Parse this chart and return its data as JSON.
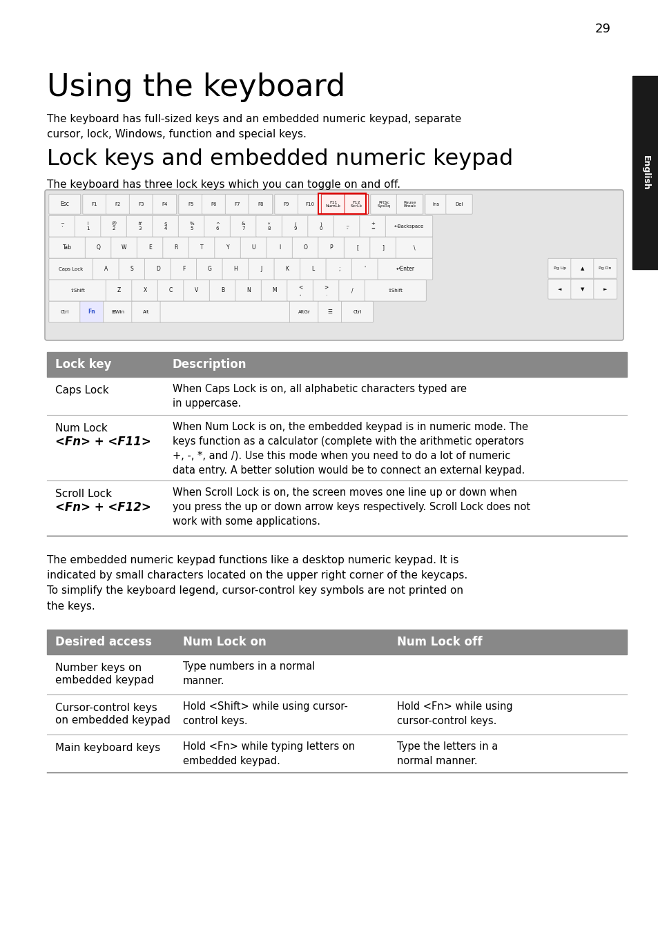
{
  "page_number": "29",
  "title": "Using the keyboard",
  "intro_text": "The keyboard has full-sized keys and an embedded numeric keypad, separate\ncursor, lock, Windows, function and special keys.",
  "section_title": "Lock keys and embedded numeric keypad",
  "section_intro": "The keyboard has three lock keys which you can toggle on and off.",
  "table1_header": [
    "Lock key",
    "Description"
  ],
  "table1_rows": [
    [
      "Caps Lock",
      "When Caps Lock is on, all alphabetic characters typed are\nin uppercase."
    ],
    [
      "Num Lock\n<Fn> + <F11>",
      "When Num Lock is on, the embedded keypad is in numeric mode. The\nkeys function as a calculator (complete with the arithmetic operators\n+, -, *, and /). Use this mode when you need to do a lot of numeric\ndata entry. A better solution would be to connect an external keypad."
    ],
    [
      "Scroll Lock\n<Fn> + <F12>",
      "When Scroll Lock is on, the screen moves one line up or down when\nyou press the up or down arrow keys respectively. Scroll Lock does not\nwork with some applications."
    ]
  ],
  "para2": "The embedded numeric keypad functions like a desktop numeric keypad. It is\nindicated by small characters located on the upper right corner of the keycaps.\nTo simplify the keyboard legend, cursor-control key symbols are not printed on\nthe keys.",
  "table2_header": [
    "Desired access",
    "Num Lock on",
    "Num Lock off"
  ],
  "table2_rows": [
    [
      "Number keys on\nembedded keypad",
      "Type numbers in a normal\nmanner.",
      ""
    ],
    [
      "Cursor-control keys\non embedded keypad",
      "Hold <Shift> while using cursor-\ncontrol keys.",
      "Hold <Fn> while using\ncursor-control keys."
    ],
    [
      "Main keyboard keys",
      "Hold <Fn> while typing letters on\nembedded keypad.",
      "Type the letters in a\nnormal manner."
    ]
  ],
  "sidebar_text": "English",
  "bg_color": "#ffffff",
  "header_color": "#808080",
  "sidebar_color": "#1a1a1a",
  "text_color": "#000000",
  "table_header_bg": "#888888",
  "table_line_color": "#aaaaaa",
  "table_bottom_color": "#666666",
  "kb_bg": "#f0f0f0",
  "kb_key_bg": "#f8f8f8",
  "kb_key_border": "#bbbbbb",
  "kb_highlight_bg": "#ffe8e8",
  "kb_highlight_border": "#cc0000"
}
